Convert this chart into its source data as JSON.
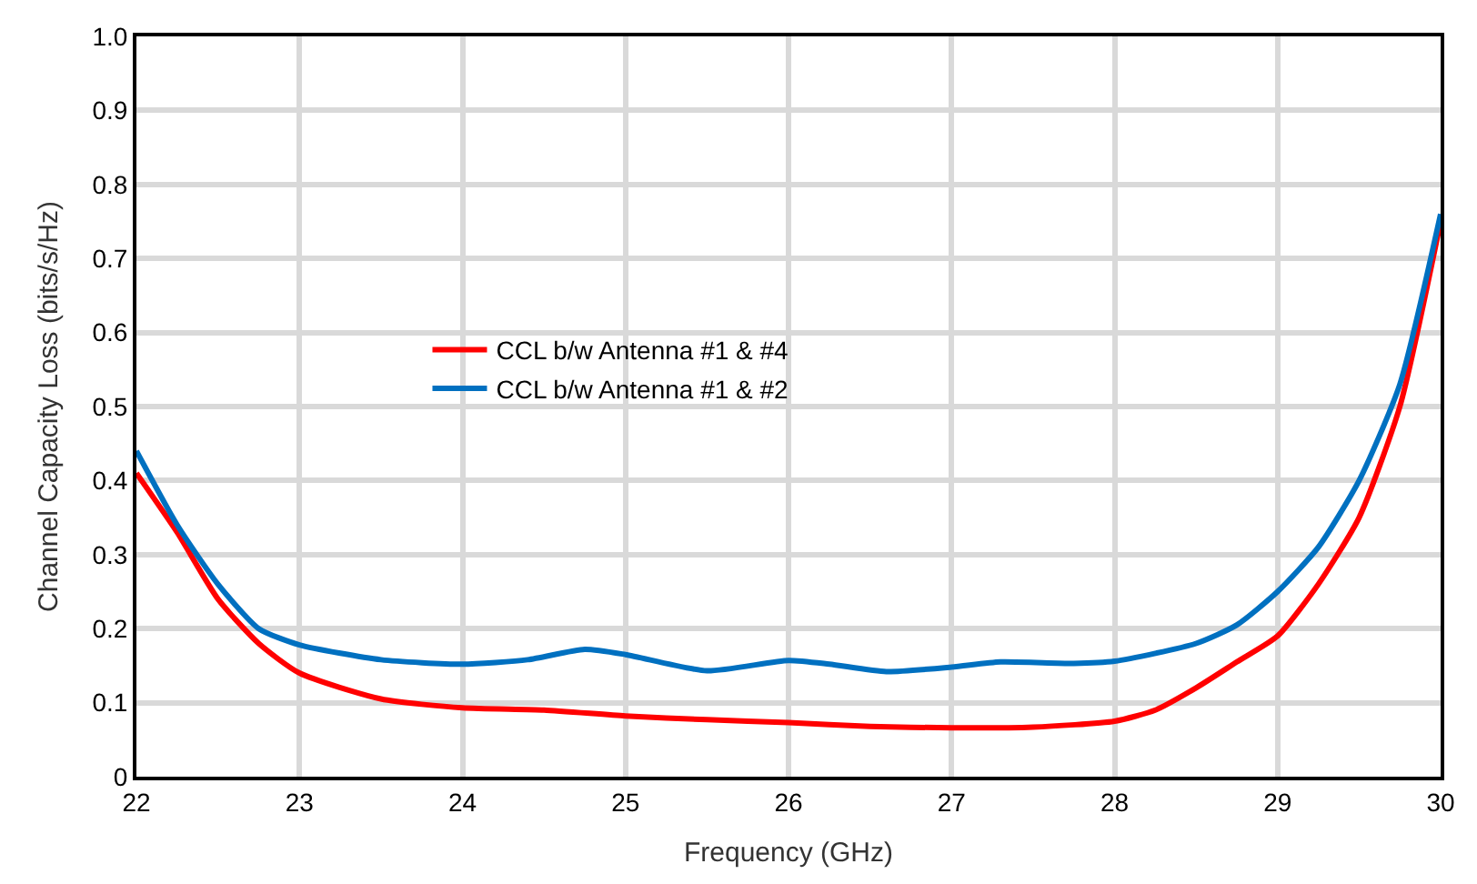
{
  "chart_data": {
    "type": "line",
    "xlabel": "Frequency (GHz)",
    "ylabel": "Channel Capacity Loss (bits/s/Hz)",
    "xlim": [
      22,
      30
    ],
    "xticks": [
      22,
      23,
      24,
      25,
      26,
      27,
      28,
      29,
      30
    ],
    "ylim": [
      0,
      1.0
    ],
    "yticks": [
      {
        "value": 0,
        "label": "0"
      },
      0.1,
      0.2,
      0.3,
      0.4,
      0.5,
      0.6,
      0.7,
      0.8,
      0.9,
      {
        "value": 1.0,
        "label": "1.0"
      }
    ],
    "grid": true,
    "legend": "left",
    "marker": "none",
    "line_style": "solid",
    "series": [
      {
        "name": "CCL b/w Antenna #1 & #4",
        "color": "#ff0000",
        "x": [
          22,
          22.25,
          22.5,
          22.75,
          23,
          23.5,
          24,
          24.5,
          25,
          25.5,
          26,
          26.5,
          27,
          27.5,
          28,
          28.25,
          28.5,
          28.75,
          29,
          29.25,
          29.5,
          29.75,
          30
        ],
        "values": [
          0.41,
          0.33,
          0.24,
          0.18,
          0.14,
          0.105,
          0.093,
          0.09,
          0.082,
          0.077,
          0.073,
          0.068,
          0.066,
          0.067,
          0.075,
          0.09,
          0.12,
          0.155,
          0.19,
          0.26,
          0.35,
          0.5,
          0.75
        ]
      },
      {
        "name": "CCL b/w Antenna #1 & #2",
        "color": "#0070c0",
        "x": [
          22,
          22.25,
          22.5,
          22.75,
          23,
          23.5,
          24,
          24.4,
          24.75,
          25,
          25.5,
          26,
          26.25,
          26.6,
          27,
          27.3,
          27.75,
          28,
          28.5,
          28.75,
          29,
          29.25,
          29.5,
          29.75,
          30
        ],
        "values": [
          0.44,
          0.34,
          0.26,
          0.2,
          0.178,
          0.158,
          0.152,
          0.158,
          0.172,
          0.165,
          0.143,
          0.157,
          0.152,
          0.142,
          0.148,
          0.155,
          0.153,
          0.156,
          0.18,
          0.205,
          0.25,
          0.31,
          0.4,
          0.53,
          0.76
        ]
      }
    ]
  }
}
